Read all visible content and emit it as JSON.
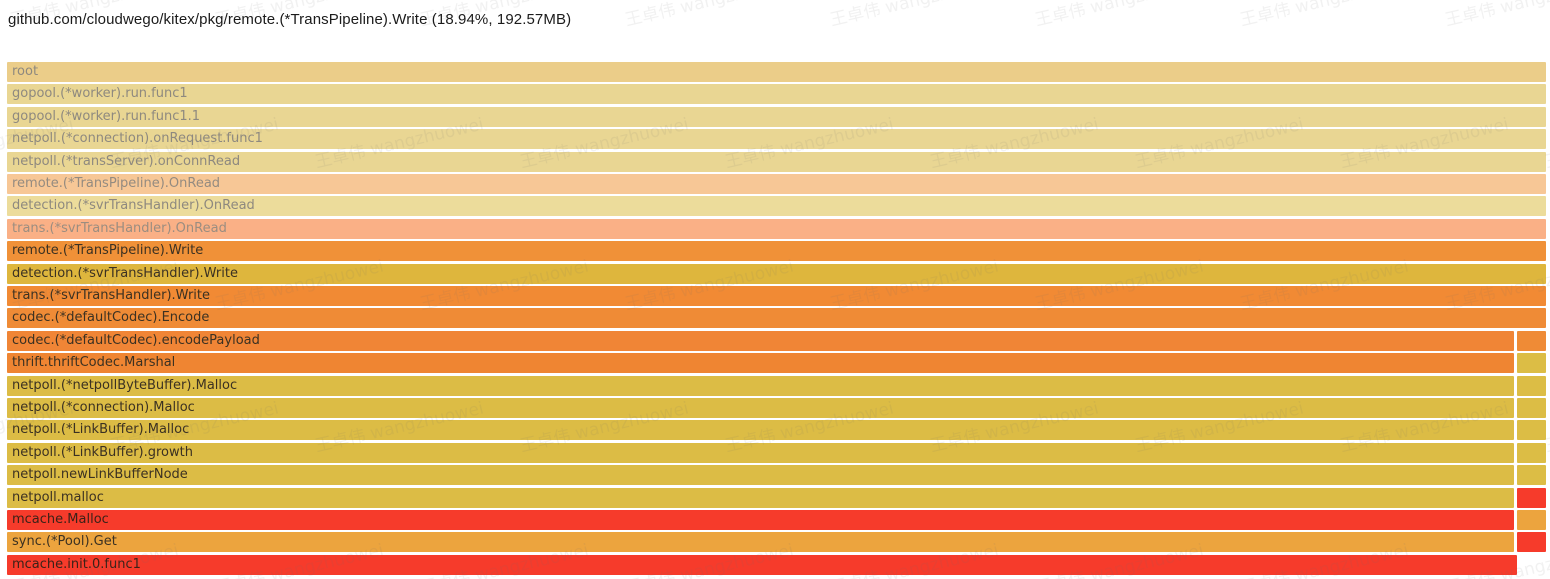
{
  "title": "github.com/cloudwego/kitex/pkg/remote.(*TransPipeline).Write (18.94%, 192.57MB)",
  "watermark": {
    "text": "王卓伟 wangzhuowei"
  },
  "chart_data": {
    "type": "flamegraph",
    "title": "github.com/cloudwego/kitex/pkg/remote.(*TransPipeline).Write (18.94%, 192.57MB)",
    "orientation": "icicle (root at top)",
    "selected_frame": {
      "name": "remote.(*TransPipeline).Write",
      "share_percent": 18.94,
      "bytes": "192.57MB"
    },
    "frames": [
      {
        "depth": 0,
        "label": "root",
        "width_pct": 99.3,
        "color": "#ebcd89",
        "fg": "#8e897f",
        "faded": true,
        "sibling_right": null
      },
      {
        "depth": 1,
        "label": "gopool.(*worker).run.func1",
        "width_pct": 99.3,
        "color": "#e9d693",
        "fg": "#8e897f",
        "faded": true,
        "sibling_right": null
      },
      {
        "depth": 2,
        "label": "gopool.(*worker).run.func1.1",
        "width_pct": 99.3,
        "color": "#e9d693",
        "fg": "#8e897f",
        "faded": true,
        "sibling_right": null
      },
      {
        "depth": 3,
        "label": "netpoll.(*connection).onRequest.func1",
        "width_pct": 99.3,
        "color": "#e9d693",
        "fg": "#8e897f",
        "faded": true,
        "sibling_right": null
      },
      {
        "depth": 4,
        "label": "netpoll.(*transServer).onConnRead",
        "width_pct": 99.3,
        "color": "#e9d693",
        "fg": "#8e897f",
        "faded": true,
        "sibling_right": null
      },
      {
        "depth": 5,
        "label": "remote.(*TransPipeline).OnRead",
        "width_pct": 99.3,
        "color": "#f7c796",
        "fg": "#948b80",
        "faded": true,
        "sibling_right": null
      },
      {
        "depth": 6,
        "label": "detection.(*svrTransHandler).OnRead",
        "width_pct": 99.3,
        "color": "#ecdc9b",
        "fg": "#8e897f",
        "faded": true,
        "sibling_right": null
      },
      {
        "depth": 7,
        "label": "trans.(*svrTransHandler).OnRead",
        "width_pct": 99.3,
        "color": "#fab086",
        "fg": "#9b8d80",
        "faded": true,
        "sibling_right": null
      },
      {
        "depth": 8,
        "label": "remote.(*TransPipeline).Write",
        "width_pct": 99.3,
        "color": "#f09138",
        "fg": "#3b3122",
        "faded": false,
        "sibling_right": null
      },
      {
        "depth": 9,
        "label": "detection.(*svrTransHandler).Write",
        "width_pct": 99.3,
        "color": "#deb63d",
        "fg": "#3b3122",
        "faded": false,
        "sibling_right": null
      },
      {
        "depth": 10,
        "label": "trans.(*svrTransHandler).Write",
        "width_pct": 99.3,
        "color": "#f18a34",
        "fg": "#3b3122",
        "faded": false,
        "sibling_right": null
      },
      {
        "depth": 11,
        "label": "codec.(*defaultCodec).Encode",
        "width_pct": 99.3,
        "color": "#ef8b36",
        "fg": "#3b3122",
        "faded": false,
        "sibling_right": null
      },
      {
        "depth": 12,
        "label": "codec.(*defaultCodec).encodePayload",
        "width_pct": 97.2,
        "color": "#f08536",
        "fg": "#3b3122",
        "faded": false,
        "sibling_right": {
          "width_pct": 1.9,
          "color": "#ef8b36"
        }
      },
      {
        "depth": 13,
        "label": "thrift.thriftCodec.Marshal",
        "width_pct": 97.2,
        "color": "#ef8532",
        "fg": "#3b3122",
        "faded": false,
        "sibling_right": {
          "width_pct": 1.9,
          "color": "#dcbd45"
        }
      },
      {
        "depth": 14,
        "label": "netpoll.(*netpollByteBuffer).Malloc",
        "width_pct": 97.2,
        "color": "#dcbc45",
        "fg": "#3b3122",
        "faded": false,
        "sibling_right": {
          "width_pct": 1.9,
          "color": "#dcbd45"
        }
      },
      {
        "depth": 15,
        "label": "netpoll.(*connection).Malloc",
        "width_pct": 97.2,
        "color": "#dcbc45",
        "fg": "#3b3122",
        "faded": false,
        "sibling_right": {
          "width_pct": 1.9,
          "color": "#dcbd45"
        }
      },
      {
        "depth": 16,
        "label": "netpoll.(*LinkBuffer).Malloc",
        "width_pct": 97.2,
        "color": "#dcbc45",
        "fg": "#3b3122",
        "faded": false,
        "sibling_right": {
          "width_pct": 1.9,
          "color": "#dcbd45"
        }
      },
      {
        "depth": 17,
        "label": "netpoll.(*LinkBuffer).growth",
        "width_pct": 97.2,
        "color": "#dcbc45",
        "fg": "#3b3122",
        "faded": false,
        "sibling_right": {
          "width_pct": 1.9,
          "color": "#dcbd45"
        }
      },
      {
        "depth": 18,
        "label": "netpoll.newLinkBufferNode",
        "width_pct": 97.2,
        "color": "#dcbc45",
        "fg": "#3b3122",
        "faded": false,
        "sibling_right": {
          "width_pct": 1.9,
          "color": "#dcbd45"
        }
      },
      {
        "depth": 19,
        "label": "netpoll.malloc",
        "width_pct": 97.2,
        "color": "#dcbc45",
        "fg": "#3b3122",
        "faded": false,
        "sibling_right": {
          "width_pct": 1.9,
          "color": "#f63b2b"
        }
      },
      {
        "depth": 20,
        "label": "mcache.Malloc",
        "width_pct": 97.2,
        "color": "#f63b2b",
        "fg": "#3b2218",
        "faded": false,
        "sibling_right": {
          "width_pct": 1.9,
          "color": "#eca43e"
        }
      },
      {
        "depth": 21,
        "label": "sync.(*Pool).Get",
        "width_pct": 97.2,
        "color": "#eca43e",
        "fg": "#3b3122",
        "faded": false,
        "sibling_right": {
          "width_pct": 1.9,
          "color": "#f63b2b"
        }
      },
      {
        "depth": 22,
        "label": "mcache.init.0.func1",
        "width_pct": 97.4,
        "color": "#f63b2b",
        "fg": "#3b2218",
        "faded": false,
        "sibling_right": null
      }
    ]
  }
}
